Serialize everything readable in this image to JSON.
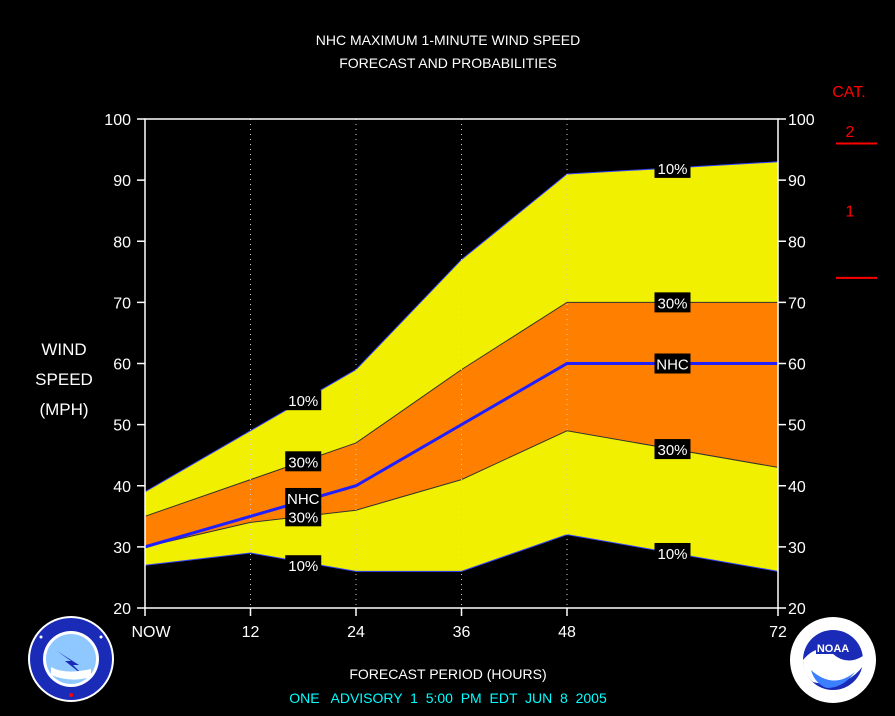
{
  "chart_data": {
    "type": "area",
    "title": [
      "NHC MAXIMUM 1-MINUTE WIND SPEED",
      "FORECAST AND PROBABILITIES"
    ],
    "xlabel": "FORECAST PERIOD (HOURS)",
    "ylabel": [
      "WIND",
      "SPEED",
      "(MPH)"
    ],
    "x": [
      0,
      12,
      24,
      36,
      48,
      72
    ],
    "x_tick_labels": [
      "NOW",
      "12",
      "24",
      "36",
      "48",
      "72"
    ],
    "ylim": [
      20,
      100
    ],
    "xlim": [
      0,
      72
    ],
    "y_ticks": [
      20,
      30,
      40,
      50,
      60,
      70,
      80,
      90,
      100
    ],
    "series": [
      {
        "name": "10%",
        "values": [
          39,
          49,
          59,
          77,
          91,
          93
        ],
        "color": "#ffff00"
      },
      {
        "name": "30%",
        "values": [
          35,
          41,
          47,
          59,
          70,
          70
        ],
        "color": "#ff8000"
      },
      {
        "name": "NHC",
        "values": [
          30,
          35,
          40,
          50,
          60,
          60
        ],
        "color": "#0000ff"
      },
      {
        "name": "30%",
        "values": [
          30,
          34,
          36,
          41,
          49,
          43
        ],
        "color": "#ff8000"
      },
      {
        "name": "10%",
        "values": [
          27,
          29,
          26,
          26,
          32,
          26
        ],
        "color": "#ffff00"
      }
    ],
    "labels": [
      {
        "text": "10%",
        "x": 18,
        "y": 54
      },
      {
        "text": "30%",
        "x": 18,
        "y": 44
      },
      {
        "text": "NHC",
        "x": 18,
        "y": 38
      },
      {
        "text": "30%",
        "x": 18,
        "y": 35
      },
      {
        "text": "10%",
        "x": 18,
        "y": 27
      },
      {
        "text": "10%",
        "x": 60,
        "y": 92
      },
      {
        "text": "30%",
        "x": 60,
        "y": 70
      },
      {
        "text": "NHC",
        "x": 60,
        "y": 60
      },
      {
        "text": "30%",
        "x": 60,
        "y": 46
      },
      {
        "text": "10%",
        "x": 60,
        "y": 29
      }
    ],
    "categories_scale": {
      "title": "CAT.",
      "thresholds": [
        74,
        96
      ],
      "labels": [
        {
          "text": "1",
          "y": 85
        },
        {
          "text": "2",
          "y": 98
        }
      ]
    },
    "grid_x": [
      12,
      24,
      36,
      48
    ],
    "colors": {
      "background": "#000000",
      "plot_background": "#000000",
      "outer_band": "#f0f000",
      "inner_band": "#ff8000",
      "nhc_line": "#1f1fff",
      "category": "#ff0000"
    }
  },
  "footer": {
    "advisory": "ONE   ADVISORY  1  5:00  PM  EDT  JUN  8  2005"
  },
  "logos": {
    "left": "nws-logo",
    "right": "noaa-logo"
  }
}
